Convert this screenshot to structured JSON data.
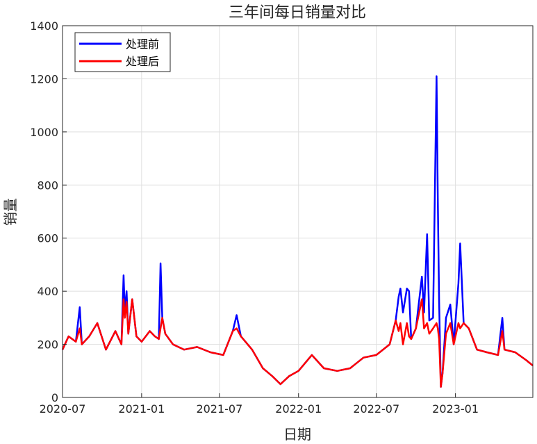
{
  "chart_data": {
    "type": "line",
    "title": "三年间每日销量对比",
    "xlabel": "日期",
    "ylabel": "销量",
    "ylim": [
      0,
      1400
    ],
    "yticks": [
      0,
      200,
      400,
      600,
      800,
      1000,
      1200,
      1400
    ],
    "xlim": [
      "2020-07-01",
      "2023-06-30"
    ],
    "xticks": [
      "2020-07",
      "2021-01",
      "2021-07",
      "2022-01",
      "2022-07",
      "2023-01"
    ],
    "grid": true,
    "legend_position": "top-left",
    "series": [
      {
        "name": "处理前",
        "color": "#0000ff",
        "points": [
          [
            "2020-07-01",
            180
          ],
          [
            "2020-07-15",
            230
          ],
          [
            "2020-08-01",
            210
          ],
          [
            "2020-08-10",
            340
          ],
          [
            "2020-08-15",
            200
          ],
          [
            "2020-09-01",
            230
          ],
          [
            "2020-09-20",
            280
          ],
          [
            "2020-10-10",
            180
          ],
          [
            "2020-11-01",
            250
          ],
          [
            "2020-11-15",
            200
          ],
          [
            "2020-11-20",
            460
          ],
          [
            "2020-11-23",
            320
          ],
          [
            "2020-11-27",
            400
          ],
          [
            "2020-12-01",
            240
          ],
          [
            "2020-12-10",
            370
          ],
          [
            "2020-12-20",
            230
          ],
          [
            "2021-01-01",
            210
          ],
          [
            "2021-01-20",
            250
          ],
          [
            "2021-02-01",
            230
          ],
          [
            "2021-02-10",
            220
          ],
          [
            "2021-02-14",
            505
          ],
          [
            "2021-02-18",
            300
          ],
          [
            "2021-02-25",
            240
          ],
          [
            "2021-03-15",
            200
          ],
          [
            "2021-04-10",
            180
          ],
          [
            "2021-05-10",
            190
          ],
          [
            "2021-06-10",
            170
          ],
          [
            "2021-07-10",
            160
          ],
          [
            "2021-08-01",
            250
          ],
          [
            "2021-08-10",
            310
          ],
          [
            "2021-08-20",
            230
          ],
          [
            "2021-09-15",
            180
          ],
          [
            "2021-10-10",
            110
          ],
          [
            "2021-11-01",
            80
          ],
          [
            "2021-11-20",
            50
          ],
          [
            "2021-12-10",
            80
          ],
          [
            "2022-01-01",
            100
          ],
          [
            "2022-02-01",
            160
          ],
          [
            "2022-03-01",
            110
          ],
          [
            "2022-04-01",
            100
          ],
          [
            "2022-05-01",
            110
          ],
          [
            "2022-06-01",
            150
          ],
          [
            "2022-07-01",
            160
          ],
          [
            "2022-08-01",
            200
          ],
          [
            "2022-08-15",
            290
          ],
          [
            "2022-08-22",
            380
          ],
          [
            "2022-08-26",
            410
          ],
          [
            "2022-09-01",
            320
          ],
          [
            "2022-09-10",
            410
          ],
          [
            "2022-09-15",
            400
          ],
          [
            "2022-09-20",
            220
          ],
          [
            "2022-10-01",
            260
          ],
          [
            "2022-10-15",
            455
          ],
          [
            "2022-10-20",
            320
          ],
          [
            "2022-10-27",
            615
          ],
          [
            "2022-11-01",
            290
          ],
          [
            "2022-11-10",
            300
          ],
          [
            "2022-11-18",
            1210
          ],
          [
            "2022-11-21",
            750
          ],
          [
            "2022-11-24",
            360
          ],
          [
            "2022-11-28",
            40
          ],
          [
            "2022-12-02",
            90
          ],
          [
            "2022-12-10",
            300
          ],
          [
            "2022-12-20",
            350
          ],
          [
            "2022-12-28",
            200
          ],
          [
            "2023-01-08",
            430
          ],
          [
            "2023-01-12",
            580
          ],
          [
            "2023-01-20",
            280
          ],
          [
            "2023-02-01",
            260
          ],
          [
            "2023-02-20",
            180
          ],
          [
            "2023-03-15",
            170
          ],
          [
            "2023-04-10",
            160
          ],
          [
            "2023-04-20",
            300
          ],
          [
            "2023-04-25",
            180
          ],
          [
            "2023-05-20",
            170
          ],
          [
            "2023-06-15",
            140
          ],
          [
            "2023-06-30",
            120
          ]
        ]
      },
      {
        "name": "处理后",
        "color": "#ff0000",
        "points": [
          [
            "2020-07-01",
            180
          ],
          [
            "2020-07-15",
            230
          ],
          [
            "2020-08-01",
            210
          ],
          [
            "2020-08-10",
            260
          ],
          [
            "2020-08-15",
            200
          ],
          [
            "2020-09-01",
            230
          ],
          [
            "2020-09-20",
            280
          ],
          [
            "2020-10-10",
            180
          ],
          [
            "2020-11-01",
            250
          ],
          [
            "2020-11-15",
            200
          ],
          [
            "2020-11-20",
            370
          ],
          [
            "2020-11-23",
            300
          ],
          [
            "2020-11-27",
            360
          ],
          [
            "2020-12-01",
            240
          ],
          [
            "2020-12-10",
            370
          ],
          [
            "2020-12-20",
            230
          ],
          [
            "2021-01-01",
            210
          ],
          [
            "2021-01-20",
            250
          ],
          [
            "2021-02-01",
            230
          ],
          [
            "2021-02-10",
            220
          ],
          [
            "2021-02-14",
            260
          ],
          [
            "2021-02-18",
            300
          ],
          [
            "2021-02-25",
            240
          ],
          [
            "2021-03-15",
            200
          ],
          [
            "2021-04-10",
            180
          ],
          [
            "2021-05-10",
            190
          ],
          [
            "2021-06-10",
            170
          ],
          [
            "2021-07-10",
            160
          ],
          [
            "2021-08-01",
            250
          ],
          [
            "2021-08-10",
            260
          ],
          [
            "2021-08-20",
            230
          ],
          [
            "2021-09-15",
            180
          ],
          [
            "2021-10-10",
            110
          ],
          [
            "2021-11-01",
            80
          ],
          [
            "2021-11-20",
            50
          ],
          [
            "2021-12-10",
            80
          ],
          [
            "2022-01-01",
            100
          ],
          [
            "2022-02-01",
            160
          ],
          [
            "2022-03-01",
            110
          ],
          [
            "2022-04-01",
            100
          ],
          [
            "2022-05-01",
            110
          ],
          [
            "2022-06-01",
            150
          ],
          [
            "2022-07-01",
            160
          ],
          [
            "2022-08-01",
            200
          ],
          [
            "2022-08-15",
            290
          ],
          [
            "2022-08-22",
            250
          ],
          [
            "2022-08-26",
            280
          ],
          [
            "2022-09-01",
            200
          ],
          [
            "2022-09-10",
            280
          ],
          [
            "2022-09-15",
            230
          ],
          [
            "2022-09-20",
            220
          ],
          [
            "2022-10-01",
            260
          ],
          [
            "2022-10-15",
            370
          ],
          [
            "2022-10-20",
            260
          ],
          [
            "2022-10-27",
            280
          ],
          [
            "2022-11-01",
            240
          ],
          [
            "2022-11-10",
            260
          ],
          [
            "2022-11-18",
            280
          ],
          [
            "2022-11-21",
            260
          ],
          [
            "2022-11-24",
            220
          ],
          [
            "2022-11-28",
            40
          ],
          [
            "2022-12-02",
            90
          ],
          [
            "2022-12-10",
            240
          ],
          [
            "2022-12-20",
            280
          ],
          [
            "2022-12-28",
            200
          ],
          [
            "2023-01-08",
            280
          ],
          [
            "2023-01-12",
            260
          ],
          [
            "2023-01-20",
            280
          ],
          [
            "2023-02-01",
            260
          ],
          [
            "2023-02-20",
            180
          ],
          [
            "2023-03-15",
            170
          ],
          [
            "2023-04-10",
            160
          ],
          [
            "2023-04-20",
            250
          ],
          [
            "2023-04-25",
            180
          ],
          [
            "2023-05-20",
            170
          ],
          [
            "2023-06-15",
            140
          ],
          [
            "2023-06-30",
            120
          ]
        ]
      }
    ]
  }
}
